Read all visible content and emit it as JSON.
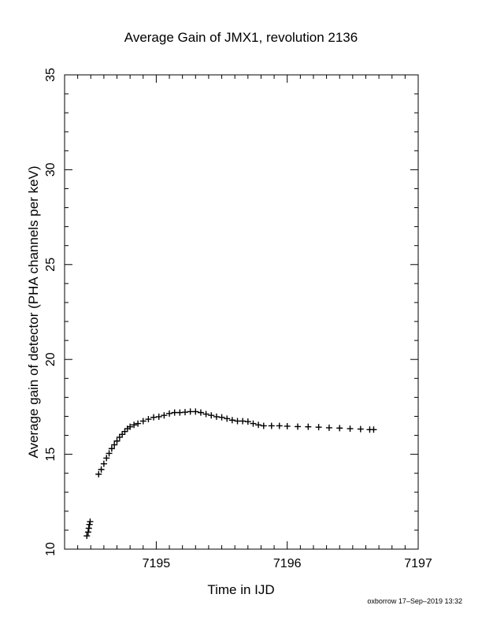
{
  "chart_data": {
    "type": "scatter",
    "title": "Average Gain of JMX1, revolution 2136",
    "xlabel": "Time in IJD",
    "ylabel": "Average gain of detector (PHA channels per keV)",
    "xlim": [
      7194.3,
      7197
    ],
    "ylim": [
      10,
      35
    ],
    "x_ticks": [
      7195,
      7196,
      7197
    ],
    "y_ticks": [
      10,
      15,
      20,
      25,
      30,
      35
    ],
    "marker": "plus",
    "marker_color": "#000000",
    "grid": false,
    "legend": "none",
    "series": [
      {
        "points": [
          [
            7194.47,
            10.7
          ],
          [
            7194.48,
            10.9
          ],
          [
            7194.485,
            11.1
          ],
          [
            7194.49,
            11.3
          ],
          [
            7194.495,
            11.45
          ],
          [
            7194.56,
            13.95
          ],
          [
            7194.58,
            14.2
          ],
          [
            7194.6,
            14.5
          ],
          [
            7194.62,
            14.8
          ],
          [
            7194.64,
            15.05
          ],
          [
            7194.66,
            15.3
          ],
          [
            7194.68,
            15.5
          ],
          [
            7194.7,
            15.7
          ],
          [
            7194.72,
            15.9
          ],
          [
            7194.74,
            16.05
          ],
          [
            7194.76,
            16.2
          ],
          [
            7194.78,
            16.35
          ],
          [
            7194.8,
            16.45
          ],
          [
            7194.83,
            16.55
          ],
          [
            7194.86,
            16.62
          ],
          [
            7194.9,
            16.75
          ],
          [
            7194.94,
            16.85
          ],
          [
            7194.98,
            16.95
          ],
          [
            7195.02,
            16.98
          ],
          [
            7195.06,
            17.05
          ],
          [
            7195.1,
            17.15
          ],
          [
            7195.14,
            17.2
          ],
          [
            7195.18,
            17.2
          ],
          [
            7195.22,
            17.22
          ],
          [
            7195.26,
            17.25
          ],
          [
            7195.3,
            17.25
          ],
          [
            7195.34,
            17.2
          ],
          [
            7195.38,
            17.12
          ],
          [
            7195.42,
            17.05
          ],
          [
            7195.46,
            16.98
          ],
          [
            7195.5,
            16.95
          ],
          [
            7195.54,
            16.88
          ],
          [
            7195.58,
            16.8
          ],
          [
            7195.62,
            16.75
          ],
          [
            7195.66,
            16.75
          ],
          [
            7195.7,
            16.72
          ],
          [
            7195.74,
            16.62
          ],
          [
            7195.78,
            16.55
          ],
          [
            7195.82,
            16.5
          ],
          [
            7195.88,
            16.5
          ],
          [
            7195.94,
            16.5
          ],
          [
            7196.0,
            16.48
          ],
          [
            7196.08,
            16.46
          ],
          [
            7196.16,
            16.45
          ],
          [
            7196.24,
            16.43
          ],
          [
            7196.32,
            16.4
          ],
          [
            7196.4,
            16.38
          ],
          [
            7196.48,
            16.35
          ],
          [
            7196.56,
            16.33
          ],
          [
            7196.63,
            16.3
          ],
          [
            7196.66,
            16.3
          ]
        ]
      }
    ]
  },
  "footer": "oxborrow 17–Sep–2019 13:32"
}
